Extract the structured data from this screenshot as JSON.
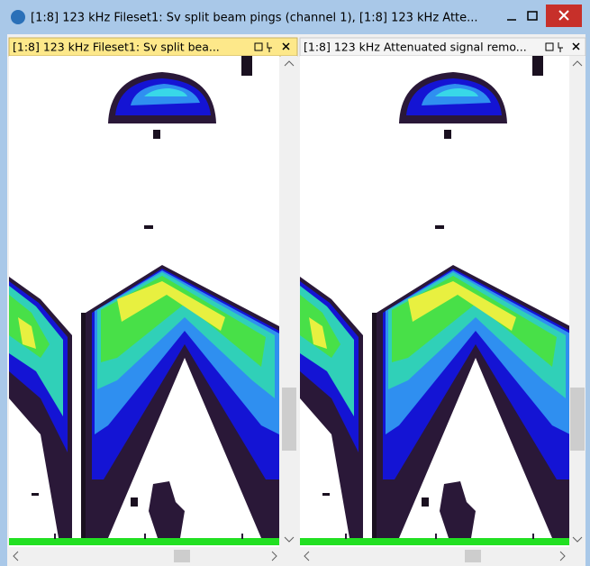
{
  "window": {
    "title": "[1:8] 123 kHz Fileset1: Sv split beam pings (channel 1), [1:8] 123 kHz Atte..."
  },
  "panes": [
    {
      "tab_title": "[1:8] 123 kHz Fileset1: Sv split bea..."
    },
    {
      "tab_title": "[1:8] 123 kHz Attenuated signal remo..."
    }
  ]
}
